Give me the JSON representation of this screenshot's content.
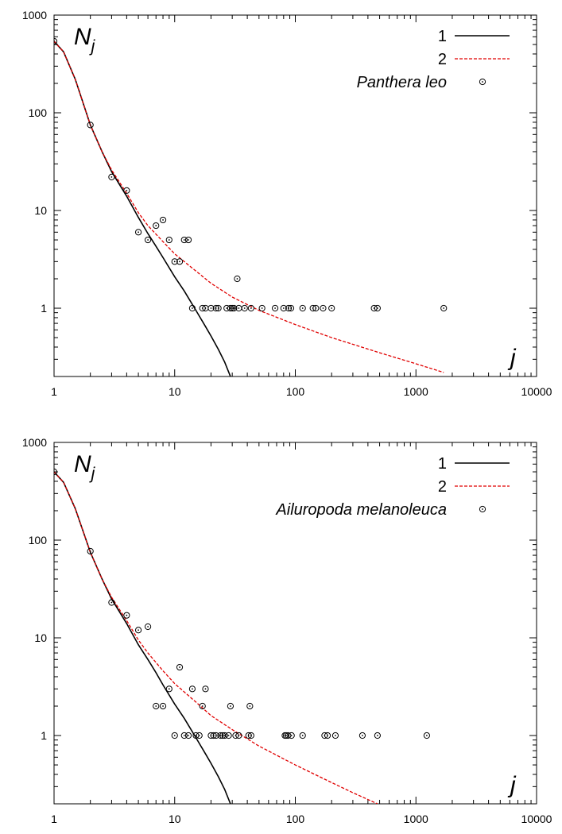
{
  "chart_data": [
    {
      "type": "line",
      "title": "",
      "xlabel": "j",
      "ylabel": "N",
      "ylabel_subscript": "j",
      "xscale": "log",
      "yscale": "log",
      "xlim": [
        1,
        10000
      ],
      "ylim": [
        0.2,
        1000
      ],
      "xticks": [
        1,
        10,
        100,
        1000,
        10000
      ],
      "xtick_labels": [
        "1",
        "10",
        "100",
        "1000",
        "10000"
      ],
      "yticks": [
        1,
        10,
        100,
        1000
      ],
      "ytick_labels": [
        "1",
        "10",
        "100",
        "1000"
      ],
      "grid": false,
      "legend_position": "top-right",
      "series": [
        {
          "name": "1",
          "kind": "line",
          "color": "#000000",
          "dash": "solid",
          "x": [
            1,
            1.2,
            1.5,
            2,
            2.5,
            3,
            4,
            5,
            6,
            7,
            8,
            10,
            12,
            15,
            18,
            20,
            23,
            26,
            29
          ],
          "y": [
            540,
            420,
            220,
            75,
            40,
            25,
            14,
            8.5,
            5.8,
            4.3,
            3.3,
            2.1,
            1.5,
            0.95,
            0.65,
            0.52,
            0.38,
            0.28,
            0.2
          ]
        },
        {
          "name": "2",
          "kind": "line",
          "color": "#e00000",
          "dash": "dashed",
          "x": [
            1,
            1.2,
            1.5,
            2,
            2.5,
            3,
            4,
            5,
            6,
            8,
            10,
            15,
            20,
            30,
            50,
            100,
            200,
            500,
            1000,
            1700
          ],
          "y": [
            540,
            420,
            220,
            75,
            40,
            26,
            15,
            9.5,
            7,
            4.8,
            3.6,
            2.4,
            1.8,
            1.3,
            0.95,
            0.68,
            0.5,
            0.35,
            0.27,
            0.22
          ]
        },
        {
          "name": "Panthera leo",
          "kind": "scatter",
          "color": "#000000",
          "x": [
            1,
            2,
            3,
            4,
            5,
            6,
            7,
            8,
            9,
            10,
            11,
            12,
            13,
            14,
            17,
            18,
            20,
            22,
            23,
            27,
            29,
            30,
            31,
            33,
            34,
            38,
            43,
            53,
            68,
            80,
            88,
            92,
            115,
            140,
            148,
            170,
            200,
            450,
            480,
            1700
          ],
          "y": [
            540,
            75,
            22,
            16,
            6,
            5,
            7,
            8,
            5,
            3,
            3,
            5,
            5,
            1,
            1,
            1,
            1,
            1,
            1,
            1,
            1,
            1,
            1,
            2,
            1,
            1,
            1,
            1,
            1,
            1,
            1,
            1,
            1,
            1,
            1,
            1,
            1,
            1,
            1,
            1
          ]
        }
      ]
    },
    {
      "type": "line",
      "title": "",
      "xlabel": "j",
      "ylabel": "N",
      "ylabel_subscript": "j",
      "xscale": "log",
      "yscale": "log",
      "xlim": [
        1,
        10000
      ],
      "ylim": [
        0.2,
        1000
      ],
      "xticks": [
        1,
        10,
        100,
        1000,
        10000
      ],
      "xtick_labels": [
        "1",
        "10",
        "100",
        "1000",
        "10000"
      ],
      "yticks": [
        1,
        10,
        100,
        1000
      ],
      "ytick_labels": [
        "1",
        "10",
        "100",
        "1000"
      ],
      "grid": false,
      "legend_position": "top-right",
      "series": [
        {
          "name": "1",
          "kind": "line",
          "color": "#000000",
          "dash": "solid",
          "x": [
            1,
            1.2,
            1.5,
            2,
            2.5,
            3,
            4,
            5,
            6,
            7,
            8,
            10,
            12,
            15,
            18,
            20,
            23,
            26,
            29
          ],
          "y": [
            500,
            390,
            210,
            75,
            40,
            25,
            14,
            8.5,
            6,
            4.4,
            3.3,
            2.1,
            1.5,
            0.95,
            0.65,
            0.52,
            0.38,
            0.28,
            0.2
          ]
        },
        {
          "name": "2",
          "kind": "line",
          "color": "#e00000",
          "dash": "dashed",
          "x": [
            1,
            1.2,
            1.5,
            2,
            2.5,
            3,
            4,
            5,
            6,
            8,
            10,
            15,
            20,
            30,
            50,
            100,
            200,
            300,
            480
          ],
          "y": [
            500,
            390,
            210,
            75,
            40,
            26,
            15,
            9.5,
            7,
            4.6,
            3.4,
            2.2,
            1.6,
            1.15,
            0.78,
            0.5,
            0.33,
            0.26,
            0.2
          ]
        },
        {
          "name": "Ailuropoda melanoleuca",
          "kind": "scatter",
          "color": "#000000",
          "x": [
            1,
            2,
            3,
            4,
            5,
            6,
            7,
            8,
            9,
            10,
            11,
            12,
            13,
            14,
            15,
            16,
            17,
            18,
            20,
            21,
            22,
            24,
            25,
            26,
            28,
            29,
            32,
            34,
            41,
            42,
            43,
            82,
            84,
            87,
            93,
            115,
            175,
            185,
            215,
            360,
            480,
            1230
          ],
          "y": [
            500,
            77,
            23,
            17,
            12,
            13,
            2,
            2,
            3,
            1,
            5,
            1,
            1,
            3,
            1,
            1,
            2,
            3,
            1,
            1,
            1,
            1,
            1,
            1,
            1,
            2,
            1,
            1,
            1,
            2,
            1,
            1,
            1,
            1,
            1,
            1,
            1,
            1,
            1,
            1,
            1,
            1
          ]
        }
      ]
    }
  ]
}
